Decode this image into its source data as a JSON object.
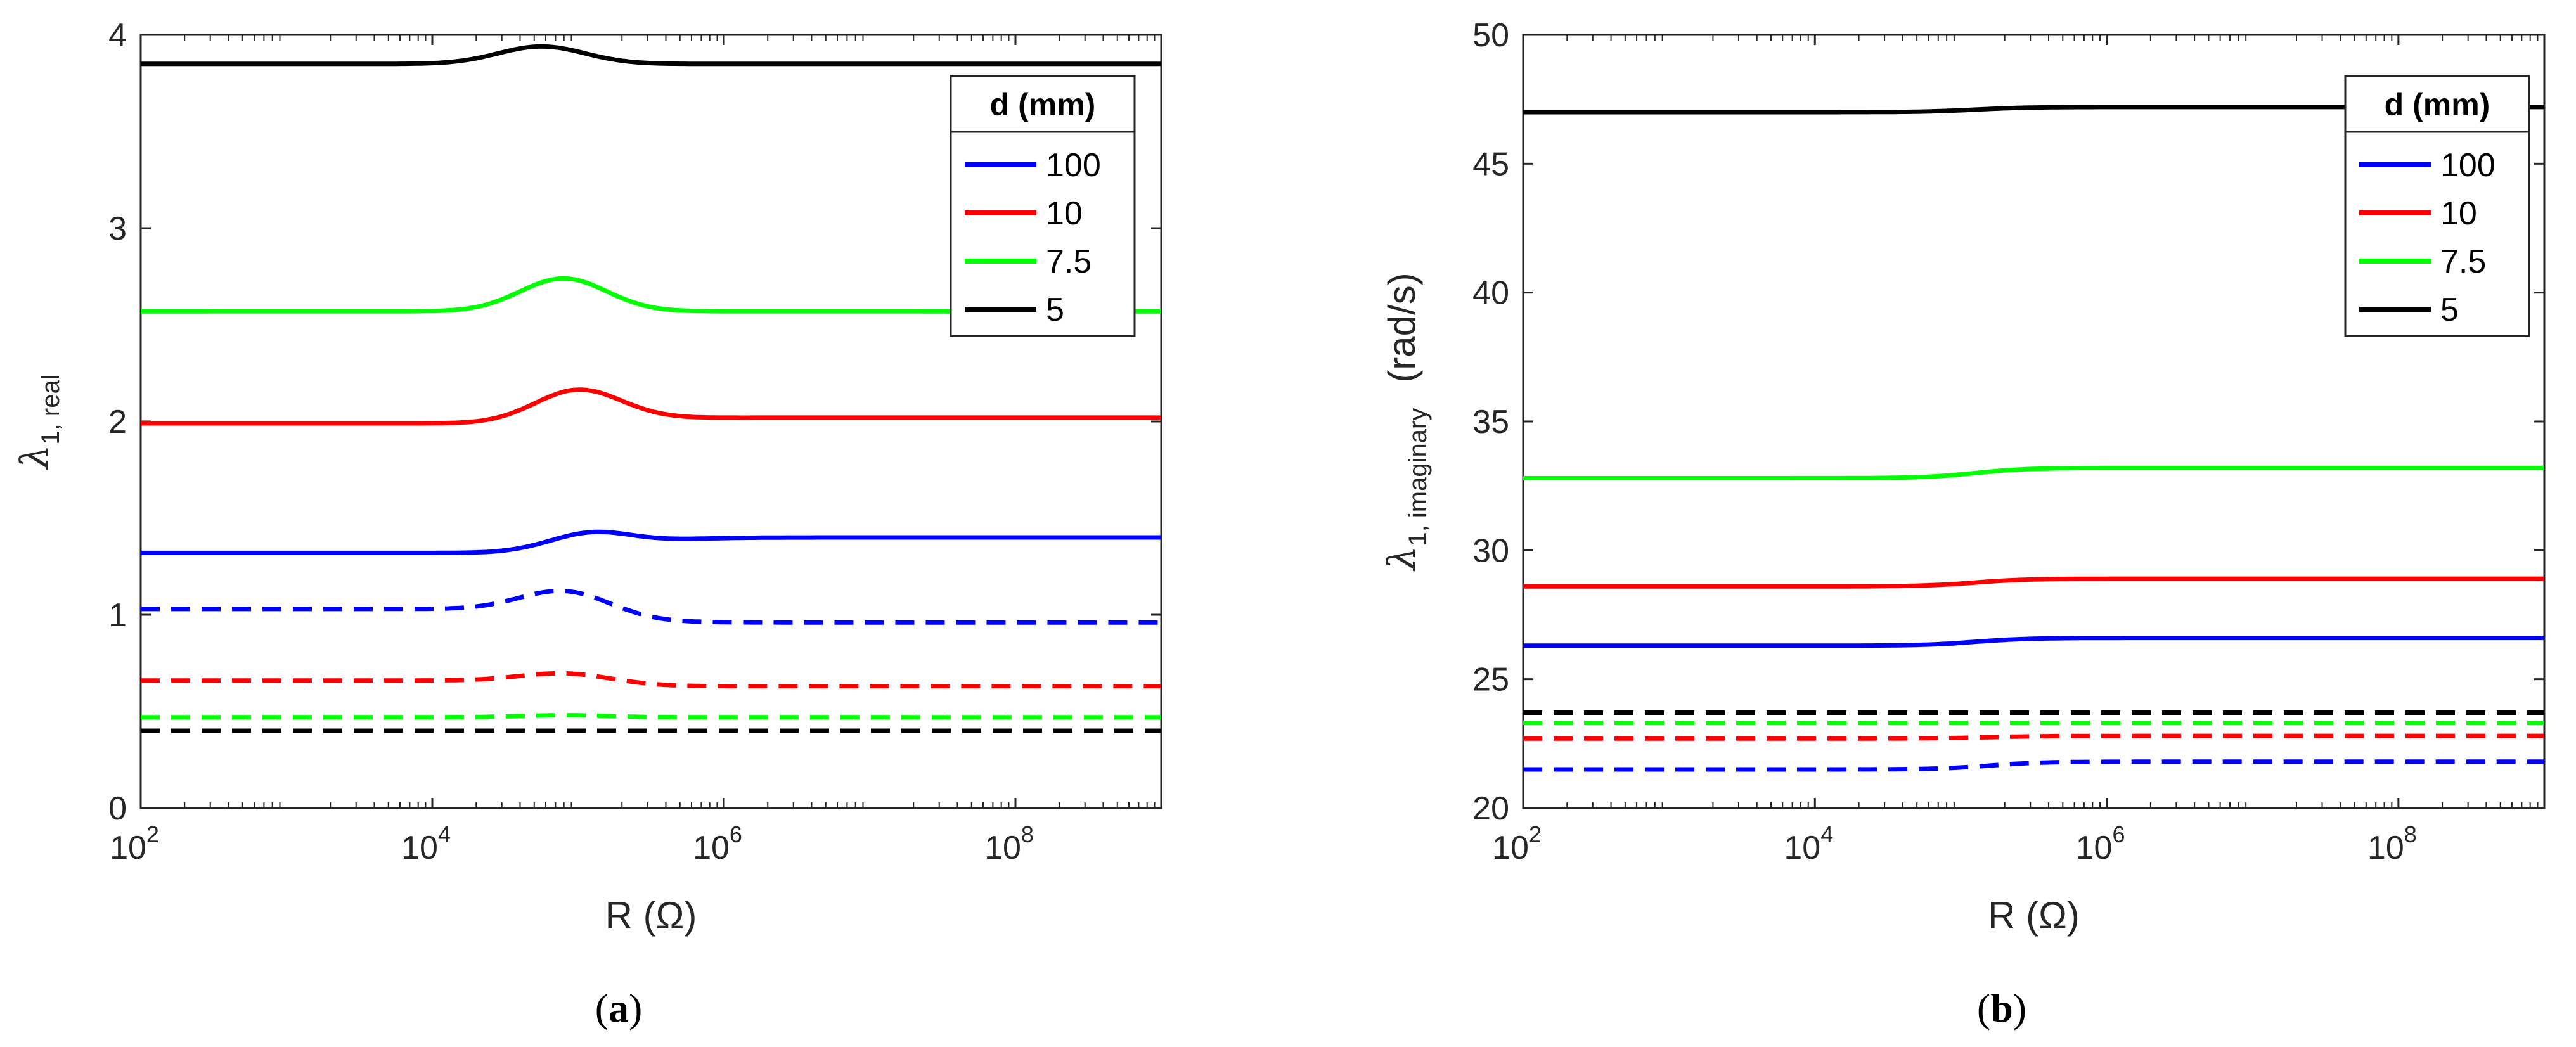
{
  "chart_data": [
    {
      "type": "line",
      "panel": "a",
      "caption": {
        "open": "(",
        "letter": "a",
        "close": ")"
      },
      "xlabel": "R (Ω)",
      "ylabel": {
        "symbol": "λ",
        "subscript": "1, real",
        "suffix": ""
      },
      "xscale": "log",
      "xlim": [
        100,
        1000000000
      ],
      "ylim": [
        0,
        4
      ],
      "xticks": [
        {
          "base": "10",
          "exp": "2",
          "value": 100
        },
        {
          "base": "10",
          "exp": "4",
          "value": 10000
        },
        {
          "base": "10",
          "exp": "6",
          "value": 1000000
        },
        {
          "base": "10",
          "exp": "8",
          "value": 100000000
        }
      ],
      "yticks": [
        {
          "label": "0",
          "value": 0
        },
        {
          "label": "1",
          "value": 1
        },
        {
          "label": "2",
          "value": 2
        },
        {
          "label": "3",
          "value": 3
        },
        {
          "label": "4",
          "value": 4
        }
      ],
      "legend": {
        "title": "d (mm)",
        "position": "top-right",
        "entries": [
          {
            "label": "100",
            "color": "#0000ff"
          },
          {
            "label": "10",
            "color": "#ff0000"
          },
          {
            "label": "7.5",
            "color": "#00ff00"
          },
          {
            "label": "5",
            "color": "#000000"
          }
        ]
      },
      "series": [
        {
          "name": "100",
          "style": "solid",
          "color": "#0000ff",
          "base": 1.32,
          "high": 1.4,
          "peak": 0.1,
          "peak_x": 5.1,
          "trans_x": 5.5
        },
        {
          "name": "10",
          "style": "solid",
          "color": "#ff0000",
          "base": 1.99,
          "high": 2.02,
          "peak": 0.17,
          "peak_x": 5.0,
          "trans_x": 5.3
        },
        {
          "name": "7.5",
          "style": "solid",
          "color": "#00ff00",
          "base": 2.57,
          "high": 2.57,
          "peak": 0.17,
          "peak_x": 4.9,
          "trans_x": 5.0
        },
        {
          "name": "5",
          "style": "solid",
          "color": "#000000",
          "base": 3.85,
          "high": 3.85,
          "peak": 0.09,
          "peak_x": 4.75,
          "trans_x": 5.0
        },
        {
          "name": "100",
          "style": "dashed",
          "color": "#0000ff",
          "base": 1.03,
          "high": 0.96,
          "peak": 0.1,
          "peak_x": 4.9,
          "trans_x": 5.3
        },
        {
          "name": "10",
          "style": "dashed",
          "color": "#ff0000",
          "base": 0.66,
          "high": 0.63,
          "peak": 0.04,
          "peak_x": 4.9,
          "trans_x": 5.3
        },
        {
          "name": "7.5",
          "style": "dashed",
          "color": "#00ff00",
          "base": 0.47,
          "high": 0.47,
          "peak": 0.01,
          "peak_x": 4.9,
          "trans_x": 5.0
        },
        {
          "name": "5",
          "style": "dashed",
          "color": "#000000",
          "base": 0.4,
          "high": 0.4,
          "peak": 0.0,
          "peak_x": 4.9,
          "trans_x": 5.0
        }
      ]
    },
    {
      "type": "line",
      "panel": "b",
      "caption": {
        "open": "(",
        "letter": "b",
        "close": ")"
      },
      "xlabel": "R (Ω)",
      "ylabel": {
        "symbol": "λ",
        "subscript": "1, imaginary",
        "suffix": "(rad/s)"
      },
      "xscale": "log",
      "xlim": [
        100,
        1000000000
      ],
      "ylim": [
        20,
        50
      ],
      "xticks": [
        {
          "base": "10",
          "exp": "2",
          "value": 100
        },
        {
          "base": "10",
          "exp": "4",
          "value": 10000
        },
        {
          "base": "10",
          "exp": "6",
          "value": 1000000
        },
        {
          "base": "10",
          "exp": "8",
          "value": 100000000
        }
      ],
      "yticks": [
        {
          "label": "20",
          "value": 20
        },
        {
          "label": "25",
          "value": 25
        },
        {
          "label": "30",
          "value": 30
        },
        {
          "label": "35",
          "value": 35
        },
        {
          "label": "40",
          "value": 40
        },
        {
          "label": "45",
          "value": 45
        },
        {
          "label": "50",
          "value": 50
        }
      ],
      "legend": {
        "title": "d (mm)",
        "position": "top-right",
        "entries": [
          {
            "label": "100",
            "color": "#0000ff"
          },
          {
            "label": "10",
            "color": "#ff0000"
          },
          {
            "label": "7.5",
            "color": "#00ff00"
          },
          {
            "label": "5",
            "color": "#000000"
          }
        ]
      },
      "series": [
        {
          "name": "100",
          "style": "solid",
          "color": "#0000ff",
          "base": 26.3,
          "high": 26.6,
          "peak": 0,
          "peak_x": 5.0,
          "trans_x": 5.1
        },
        {
          "name": "10",
          "style": "solid",
          "color": "#ff0000",
          "base": 28.6,
          "high": 28.9,
          "peak": 0,
          "peak_x": 5.0,
          "trans_x": 5.1
        },
        {
          "name": "7.5",
          "style": "solid",
          "color": "#00ff00",
          "base": 32.8,
          "high": 33.2,
          "peak": 0,
          "peak_x": 5.0,
          "trans_x": 5.1
        },
        {
          "name": "5",
          "style": "solid",
          "color": "#000000",
          "base": 47.0,
          "high": 47.2,
          "peak": 0,
          "peak_x": 5.0,
          "trans_x": 5.1
        },
        {
          "name": "100",
          "style": "dashed",
          "color": "#0000ff",
          "base": 21.5,
          "high": 21.8,
          "peak": 0,
          "peak_x": 5.0,
          "trans_x": 5.2
        },
        {
          "name": "10",
          "style": "dashed",
          "color": "#ff0000",
          "base": 22.7,
          "high": 22.8,
          "peak": 0,
          "peak_x": 5.0,
          "trans_x": 5.2
        },
        {
          "name": "7.5",
          "style": "dashed",
          "color": "#00ff00",
          "base": 23.3,
          "high": 23.3,
          "peak": 0,
          "peak_x": 5.0,
          "trans_x": 5.2
        },
        {
          "name": "5",
          "style": "dashed",
          "color": "#000000",
          "base": 23.7,
          "high": 23.7,
          "peak": 0,
          "peak_x": 5.0,
          "trans_x": 5.2
        }
      ]
    }
  ]
}
